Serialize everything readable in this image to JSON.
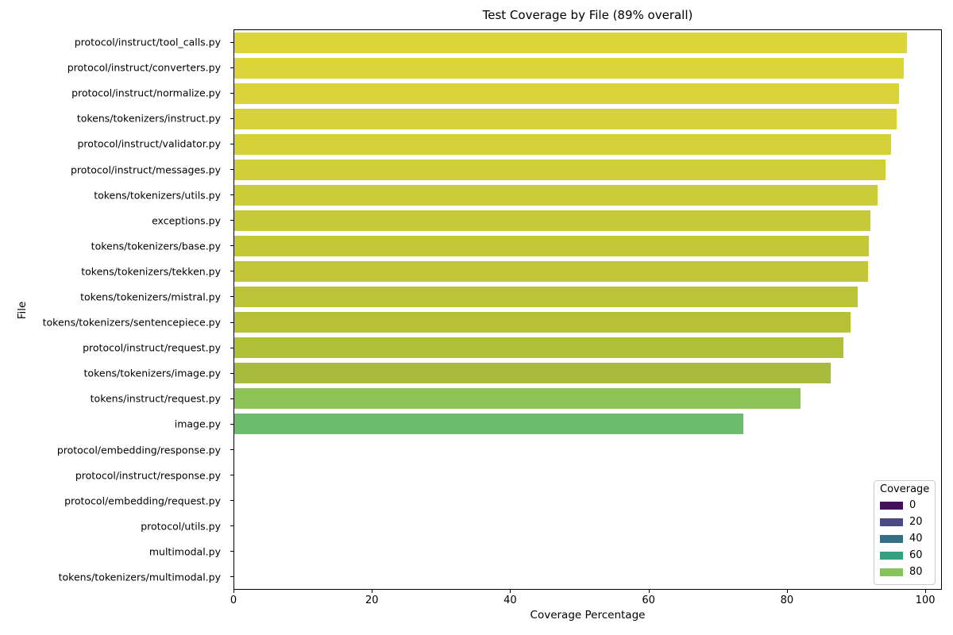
{
  "figure": {
    "background": "#ffffff",
    "text_color": "#000000",
    "spine_color": "#000000"
  },
  "chart_data": {
    "type": "bar",
    "orientation": "horizontal",
    "title": "Test Coverage by File (89% overall)",
    "xlabel": "Coverage Percentage",
    "ylabel": "File",
    "xlim": [
      0,
      102.4
    ],
    "xticks": [
      0,
      20,
      40,
      60,
      80,
      100
    ],
    "grid": false,
    "legend": {
      "title": "Coverage",
      "position": "lower right",
      "entries": [
        {
          "label": "0",
          "color": "#431158"
        },
        {
          "label": "20",
          "color": "#474b81"
        },
        {
          "label": "40",
          "color": "#346f84"
        },
        {
          "label": "60",
          "color": "#339f7f"
        },
        {
          "label": "80",
          "color": "#85c45c"
        }
      ]
    },
    "rows": [
      {
        "file": "protocol/instruct/tool_calls.py",
        "value": 97.4,
        "color": "#dcd53a"
      },
      {
        "file": "protocol/instruct/converters.py",
        "value": 97.0,
        "color": "#dbd43a"
      },
      {
        "file": "protocol/instruct/normalize.py",
        "value": 96.3,
        "color": "#dad43a"
      },
      {
        "file": "tokens/tokenizers/instruct.py",
        "value": 95.9,
        "color": "#d8d23a"
      },
      {
        "file": "protocol/instruct/validator.py",
        "value": 95.1,
        "color": "#d5d139"
      },
      {
        "file": "protocol/instruct/messages.py",
        "value": 94.4,
        "color": "#d1cf39"
      },
      {
        "file": "tokens/tokenizers/utils.py",
        "value": 93.2,
        "color": "#cbcc38"
      },
      {
        "file": "exceptions.py",
        "value": 92.2,
        "color": "#c7ca38"
      },
      {
        "file": "tokens/tokenizers/base.py",
        "value": 91.9,
        "color": "#c4c837"
      },
      {
        "file": "tokens/tokenizers/tekken.py",
        "value": 91.8,
        "color": "#c3c737"
      },
      {
        "file": "tokens/tokenizers/mistral.py",
        "value": 90.3,
        "color": "#bbc336"
      },
      {
        "file": "tokens/tokenizers/sentencepiece.py",
        "value": 89.3,
        "color": "#b7c136"
      },
      {
        "file": "protocol/instruct/request.py",
        "value": 88.2,
        "color": "#b0be38"
      },
      {
        "file": "tokens/tokenizers/image.py",
        "value": 86.4,
        "color": "#a8bb3c"
      },
      {
        "file": "tokens/instruct/request.py",
        "value": 82.0,
        "color": "#8ec456"
      },
      {
        "file": "image.py",
        "value": 73.8,
        "color": "#6cbc6e"
      },
      {
        "file": "protocol/embedding/response.py",
        "value": 0,
        "color": "#431158"
      },
      {
        "file": "protocol/instruct/response.py",
        "value": 0,
        "color": "#431158"
      },
      {
        "file": "protocol/embedding/request.py",
        "value": 0,
        "color": "#431158"
      },
      {
        "file": "protocol/utils.py",
        "value": 0,
        "color": "#431158"
      },
      {
        "file": "multimodal.py",
        "value": 0,
        "color": "#431158"
      },
      {
        "file": "tokens/tokenizers/multimodal.py",
        "value": 0,
        "color": "#431158"
      }
    ]
  }
}
